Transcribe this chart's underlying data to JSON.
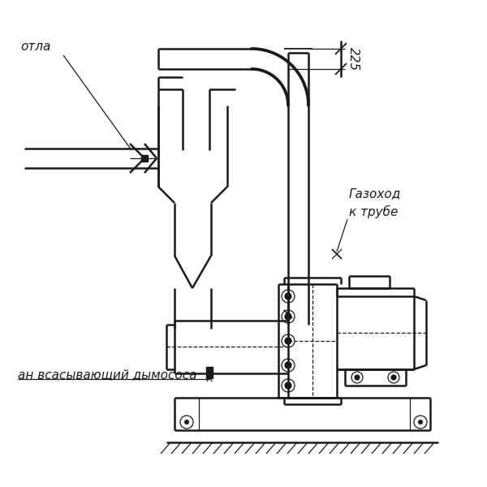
{
  "bg_color": "#ffffff",
  "lc": "#1a1a1a",
  "lw": 1.8,
  "lw_thin": 0.9,
  "lw_med": 1.3,
  "text_kotla": "отла",
  "text_gazokhod": "Газоход\nк трубе",
  "text_dimension": "225",
  "text_vsas": "ан всасывающий дымососа"
}
